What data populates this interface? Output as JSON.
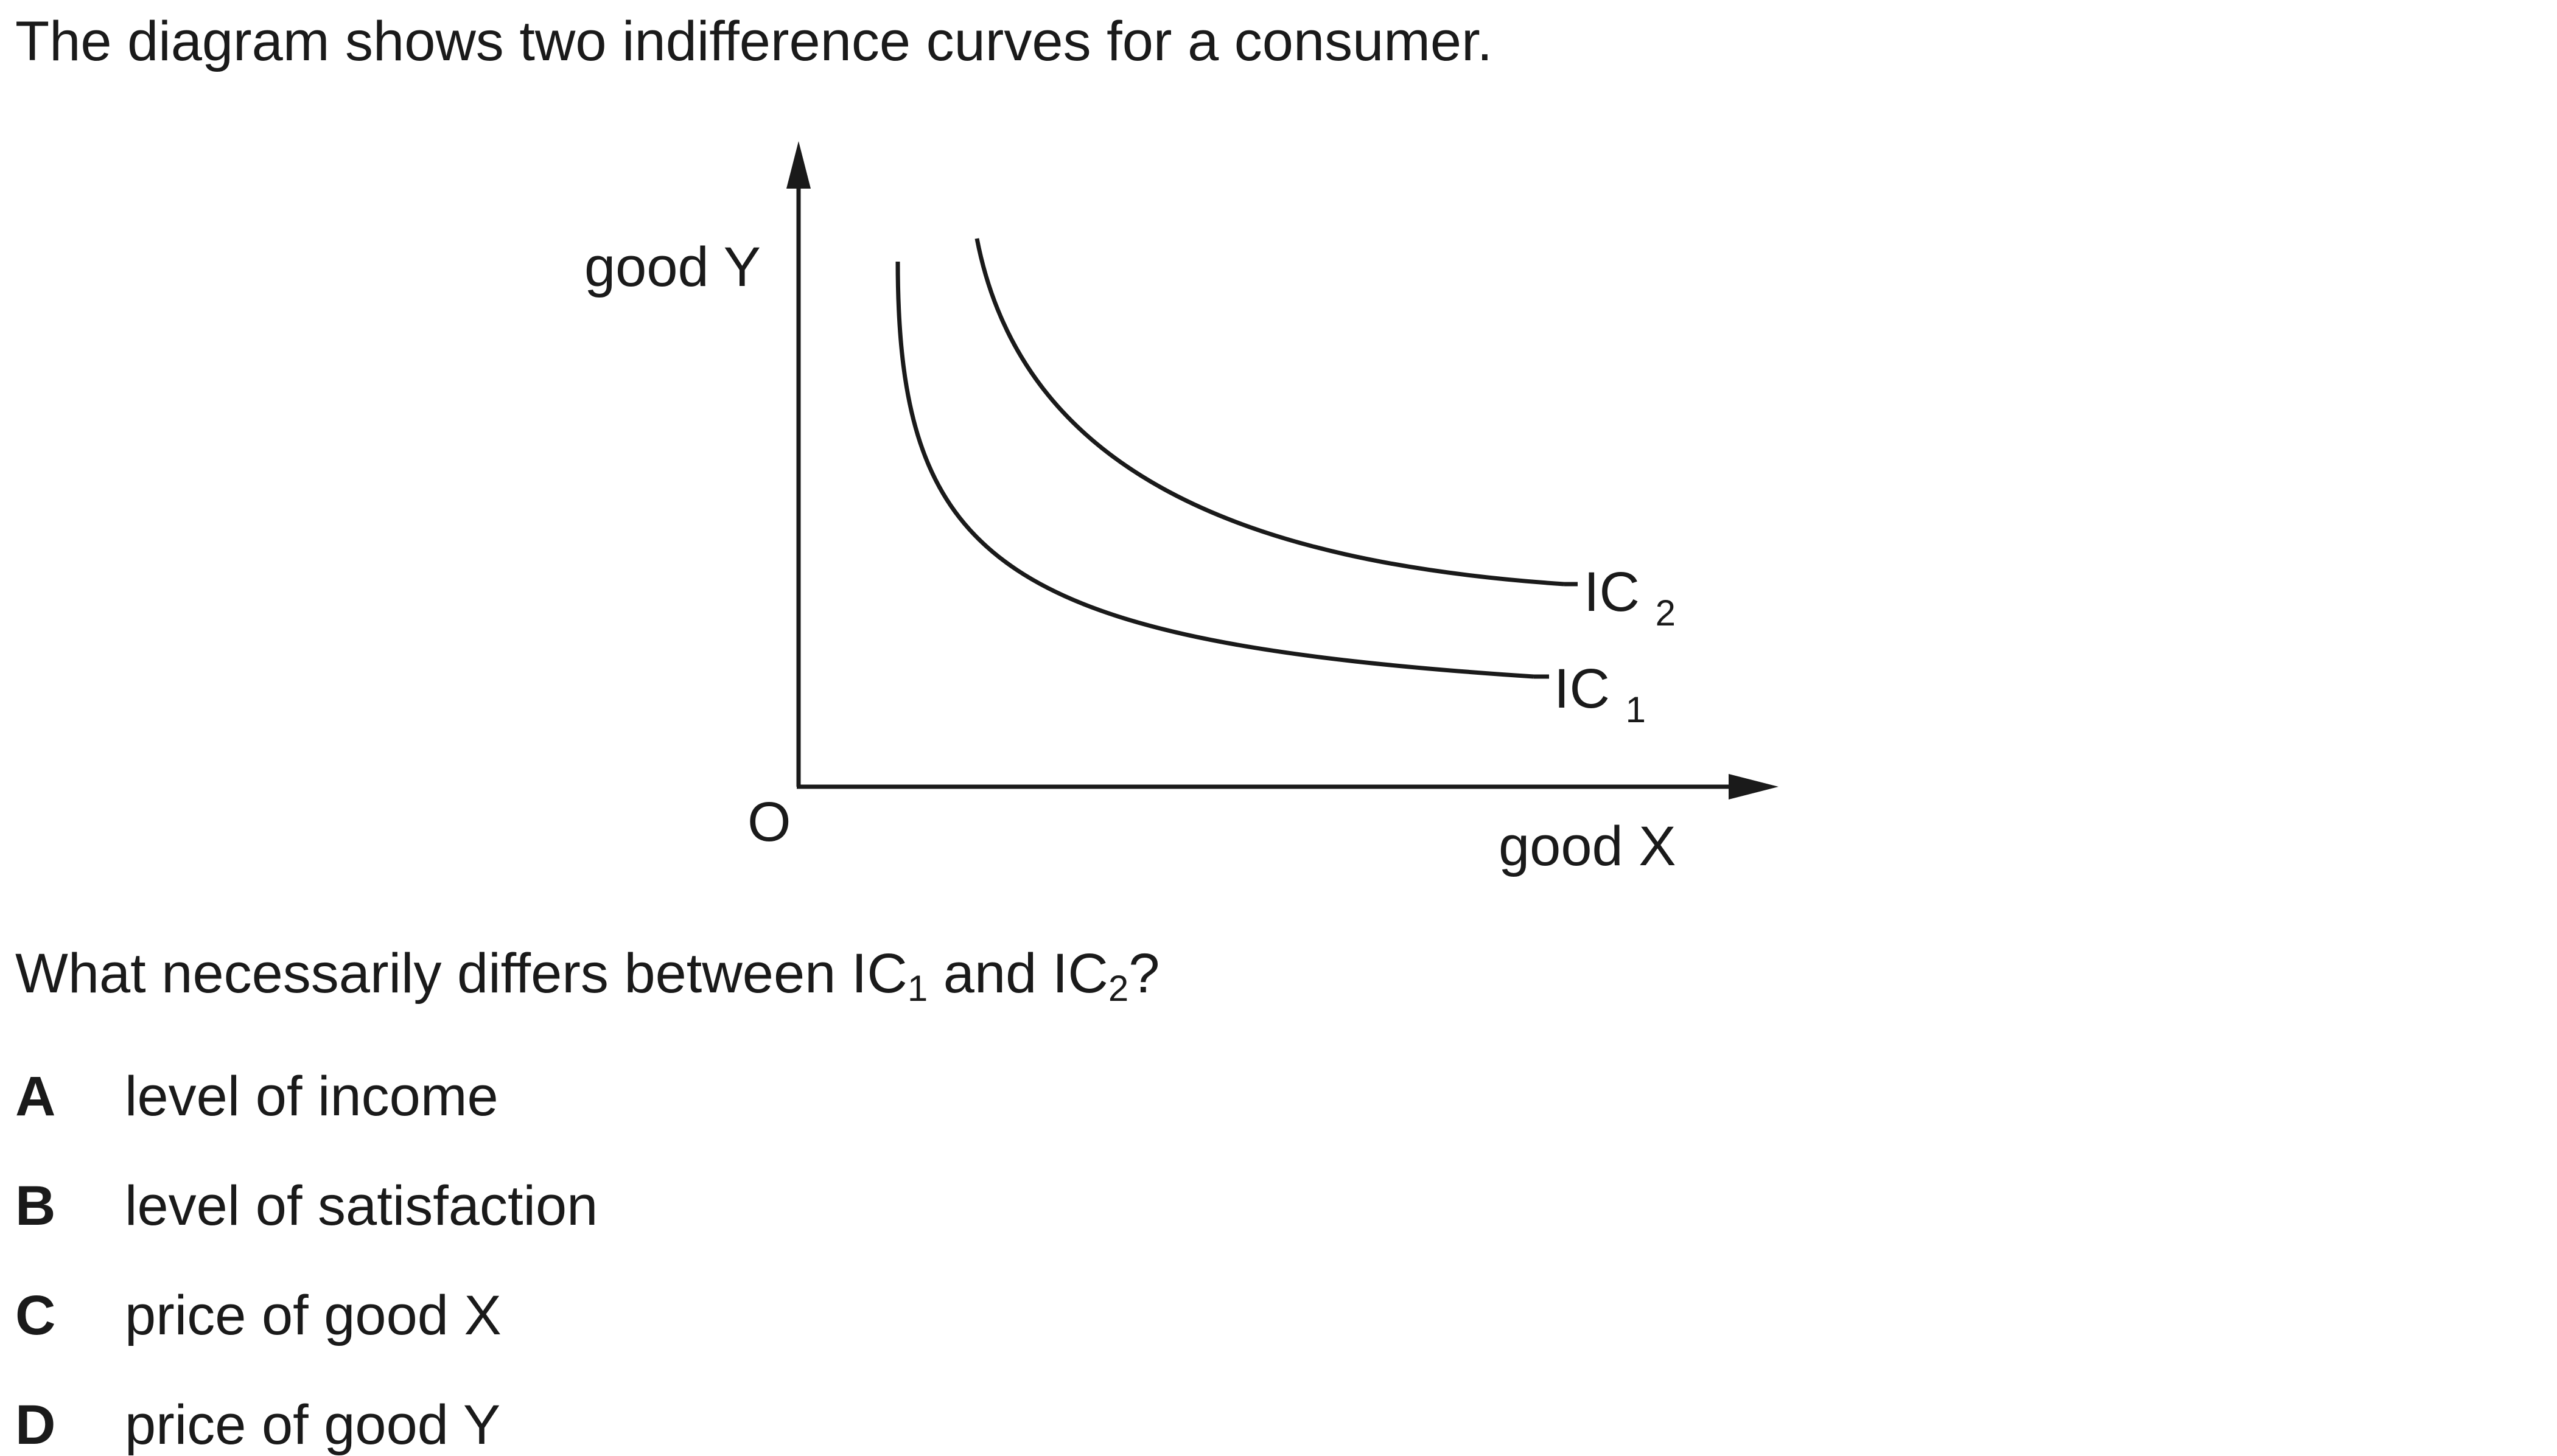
{
  "stem": "The diagram shows two indifference curves for a consumer.",
  "diagram": {
    "y_axis_label": "good Y",
    "x_axis_label": "good X",
    "origin_label": "O",
    "curves": [
      {
        "label": "IC",
        "subscript": "1"
      },
      {
        "label": "IC",
        "subscript": "2"
      }
    ],
    "line_color": "#1a1a1a"
  },
  "question": {
    "before": "What necessarily differs between IC",
    "sub1": "1",
    "middle": " and IC",
    "sub2": "2",
    "after": "?"
  },
  "options": [
    {
      "letter": "A",
      "text": "level of income"
    },
    {
      "letter": "B",
      "text": "level of satisfaction"
    },
    {
      "letter": "C",
      "text": "price of good X"
    },
    {
      "letter": "D",
      "text": "price of good Y"
    }
  ]
}
